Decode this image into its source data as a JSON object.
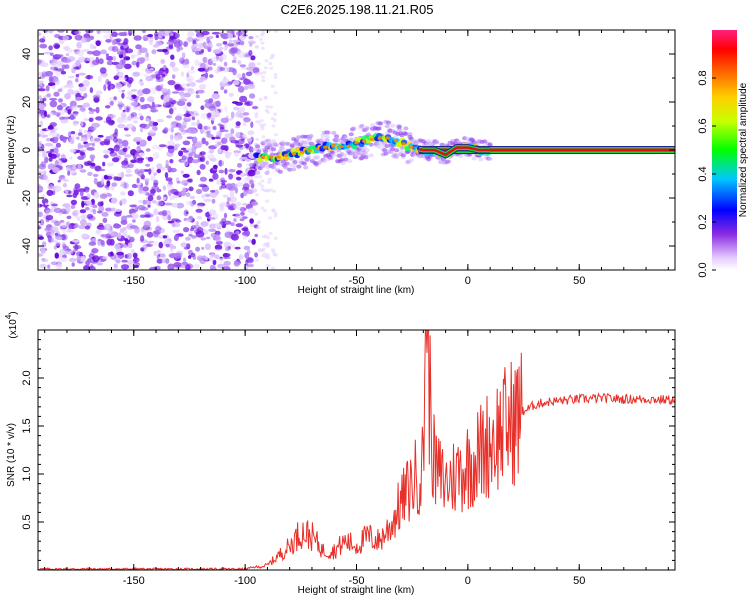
{
  "title": "C2E6.2025.198.11.21.R05",
  "colors": {
    "snr_line": "#e8302a",
    "ridge": "#e01010",
    "noise": "#7a00e0"
  },
  "chart_data": [
    {
      "type": "heatmap",
      "id": "spectrogram",
      "xlabel": "Height of straight line (km)",
      "ylabel": "Frequency (Hz)",
      "xlim": [
        -193,
        93
      ],
      "ylim": [
        -50,
        50
      ],
      "xticks": [
        -150,
        -100,
        -50,
        0,
        50
      ],
      "yticks": [
        -40,
        -20,
        0,
        20,
        40
      ],
      "colorbar": {
        "label": "Normalized spectral amplitude",
        "range": [
          0,
          1
        ],
        "ticks": [
          0.0,
          0.2,
          0.4,
          0.6,
          0.8
        ]
      },
      "signal_track": {
        "description_points_x": [
          -95,
          -90,
          -85,
          -80,
          -75,
          -70,
          -65,
          -60,
          -55,
          -50,
          -45,
          -40,
          -35,
          -30,
          -25,
          -20,
          -15,
          -10,
          -5,
          0,
          5,
          10,
          50,
          93
        ],
        "description_points_y": [
          -3,
          -3,
          -3,
          -2,
          -1,
          0,
          1,
          2,
          1,
          3,
          4,
          5,
          5,
          3,
          1,
          0,
          0,
          -2,
          1,
          1,
          0,
          0,
          0,
          0
        ]
      }
    },
    {
      "type": "line",
      "id": "snr",
      "xlabel": "Height of straight line (km)",
      "ylabel": "SNR (10 * v/v)",
      "scale_label": "(x10",
      "scale_exp": "4",
      "xlim": [
        -193,
        93
      ],
      "ylim": [
        0,
        2.5
      ],
      "xticks": [
        -150,
        -100,
        -50,
        0,
        50
      ],
      "yticks": [
        0.5,
        1.0,
        1.5,
        2.0
      ],
      "series": [
        {
          "x": [
            -193,
            -150,
            -100,
            -90,
            -85,
            -80,
            -75,
            -70,
            -65,
            -60,
            -55,
            -50,
            -45,
            -40,
            -35,
            -30,
            -25,
            -20,
            -19,
            -15,
            -10,
            -5,
            0,
            5,
            10,
            15,
            20,
            25,
            30,
            35,
            40,
            50,
            60,
            70,
            80,
            93
          ],
          "y": [
            0.0,
            0.0,
            0.0,
            0.05,
            0.15,
            0.25,
            0.4,
            0.35,
            0.2,
            0.2,
            0.3,
            0.25,
            0.35,
            0.3,
            0.45,
            0.7,
            0.9,
            1.1,
            2.5,
            1.05,
            0.9,
            1.0,
            1.1,
            1.2,
            1.35,
            1.45,
            1.55,
            1.65,
            1.72,
            1.75,
            1.76,
            1.78,
            1.79,
            1.78,
            1.78,
            1.77
          ]
        }
      ]
    }
  ]
}
